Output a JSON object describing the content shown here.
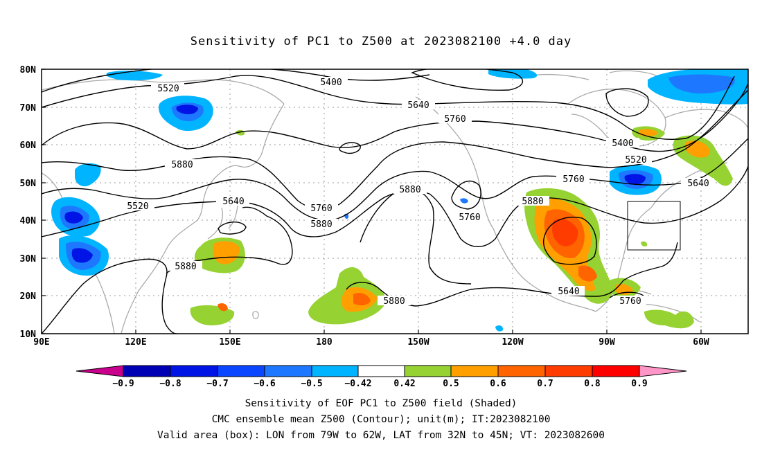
{
  "title": "Sensitivity of PC1 to Z500 at 2023082100 +4.0 day",
  "lat_ticks": [
    "80N",
    "70N",
    "60N",
    "50N",
    "40N",
    "30N",
    "20N",
    "10N"
  ],
  "lon_ticks": [
    "90E",
    "120E",
    "150E",
    "180",
    "150W",
    "120W",
    "90W",
    "60W"
  ],
  "contours": {
    "labels": [
      "5400",
      "5520",
      "5640",
      "5760",
      "5880",
      "5520",
      "5640",
      "5760",
      "5880",
      "5880",
      "5880",
      "5880",
      "5880",
      "5760",
      "5760",
      "5640",
      "5520",
      "5400",
      "5640"
    ],
    "line_color": "#000000"
  },
  "colorbar": {
    "labels": [
      "−0.9",
      "−0.8",
      "−0.7",
      "−0.6",
      "−0.5",
      "−0.42",
      "0.42",
      "0.5",
      "0.6",
      "0.7",
      "0.8",
      "0.9"
    ],
    "colors": [
      "#c8008c",
      "#0000b4",
      "#0014e6",
      "#0a46ff",
      "#1e78ff",
      "#00b4ff",
      "#ffffff",
      "#96d232",
      "#ffa000",
      "#ff6400",
      "#ff3c00",
      "#ff0000",
      "#ff96c8"
    ]
  },
  "valid_box": {
    "lon_from": -79,
    "lon_to": -62,
    "lat_from": 32,
    "lat_to": 45
  },
  "footer": {
    "line1": "Sensitivity of EOF PC1 to Z500 field (Shaded)",
    "line2": "CMC ensemble mean Z500 (Contour); unit(m); IT:2023082100",
    "line3": "Valid area (box): LON from 79W to 62W, LAT from 32N to 45N; VT: 2023082600"
  }
}
